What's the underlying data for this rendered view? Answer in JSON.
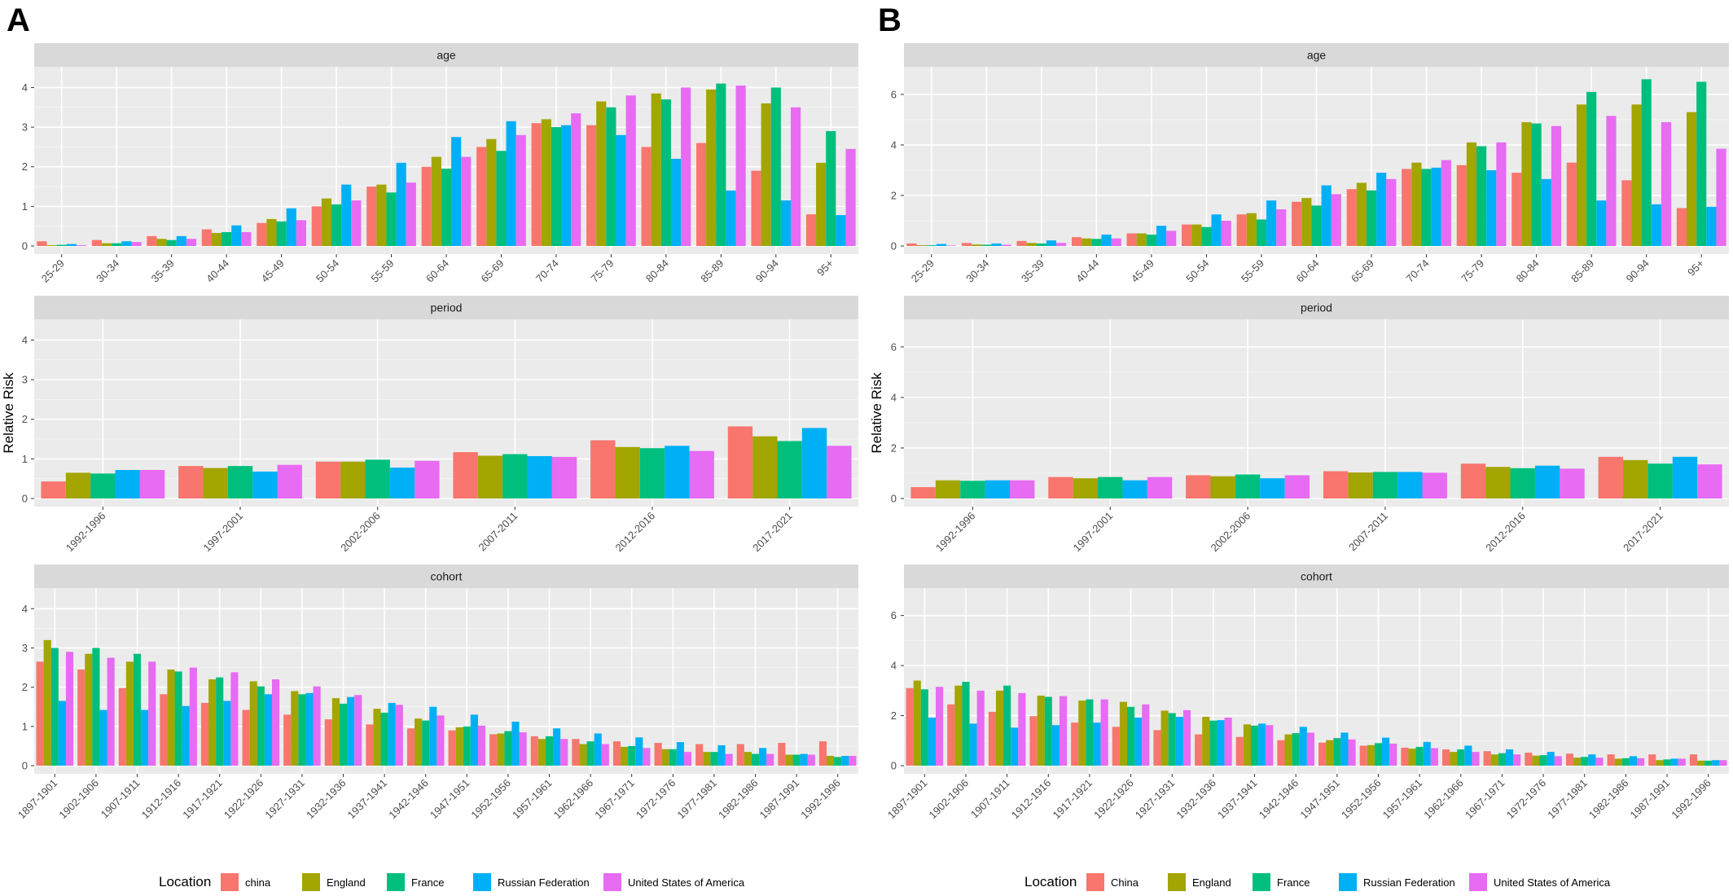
{
  "figure": {
    "colors": {
      "panel_bg": "#ebebeb",
      "strip_bg": "#d9d9d9",
      "grid_major": "#ffffff",
      "series": [
        "#f8766d",
        "#a3a500",
        "#00bf7d",
        "#00b0f6",
        "#e76bf3"
      ]
    },
    "legend_position": "bottom"
  },
  "chart_data": [
    {
      "panel_label": "A",
      "type": "bar",
      "ylabel": "Relative Risk",
      "legend": {
        "title": "Location",
        "entries": [
          "china",
          "England",
          "France",
          "Russian Federation",
          "United States of America"
        ]
      },
      "facets": [
        {
          "title": "age",
          "ylim": [
            0,
            4.4
          ],
          "yticks": [
            0,
            1,
            2,
            3,
            4
          ],
          "categories": [
            "25-29",
            "30-34",
            "35-39",
            "40-44",
            "45-49",
            "50-54",
            "55-59",
            "60-64",
            "65-69",
            "70-74",
            "75-79",
            "80-84",
            "85-89",
            "90-94",
            "95+"
          ],
          "series": [
            {
              "name": "china",
              "values": [
                0.12,
                0.15,
                0.25,
                0.42,
                0.58,
                1.0,
                1.5,
                2.0,
                2.5,
                3.1,
                3.05,
                2.5,
                2.6,
                1.9,
                0.8
              ]
            },
            {
              "name": "England",
              "values": [
                0.02,
                0.07,
                0.18,
                0.33,
                0.68,
                1.2,
                1.55,
                2.25,
                2.7,
                3.2,
                3.65,
                3.85,
                3.95,
                3.6,
                2.1
              ]
            },
            {
              "name": "France",
              "values": [
                0.03,
                0.07,
                0.15,
                0.35,
                0.62,
                1.05,
                1.35,
                1.95,
                2.4,
                3.0,
                3.5,
                3.7,
                4.1,
                4.0,
                2.9
              ]
            },
            {
              "name": "Russian Federation",
              "values": [
                0.05,
                0.12,
                0.25,
                0.52,
                0.95,
                1.55,
                2.1,
                2.75,
                3.15,
                3.05,
                2.8,
                2.2,
                1.4,
                1.15,
                0.78
              ]
            },
            {
              "name": "United States of America",
              "values": [
                0.02,
                0.1,
                0.18,
                0.35,
                0.65,
                1.15,
                1.6,
                2.25,
                2.8,
                3.35,
                3.8,
                4.0,
                4.05,
                3.5,
                2.45
              ]
            }
          ]
        },
        {
          "title": "period",
          "ylim": [
            0,
            4.4
          ],
          "yticks": [
            0,
            1,
            2,
            3,
            4
          ],
          "categories": [
            "1992-1996",
            "1997-2001",
            "2002-2006",
            "2007-2011",
            "2012-2016",
            "2017-2021"
          ],
          "series": [
            {
              "name": "china",
              "values": [
                0.43,
                0.82,
                0.93,
                1.17,
                1.47,
                1.82
              ]
            },
            {
              "name": "England",
              "values": [
                0.65,
                0.77,
                0.93,
                1.08,
                1.3,
                1.57
              ]
            },
            {
              "name": "France",
              "values": [
                0.63,
                0.82,
                0.98,
                1.12,
                1.27,
                1.45
              ]
            },
            {
              "name": "Russian Federation",
              "values": [
                0.72,
                0.68,
                0.78,
                1.07,
                1.33,
                1.78
              ]
            },
            {
              "name": "United States of America",
              "values": [
                0.72,
                0.85,
                0.95,
                1.05,
                1.2,
                1.33
              ]
            }
          ]
        },
        {
          "title": "cohort",
          "ylim": [
            0,
            4.4
          ],
          "yticks": [
            0,
            1,
            2,
            3,
            4
          ],
          "categories": [
            "1897-1901",
            "1902-1906",
            "1907-1911",
            "1912-1916",
            "1917-1921",
            "1922-1926",
            "1927-1931",
            "1932-1936",
            "1937-1941",
            "1942-1946",
            "1947-1951",
            "1952-1956",
            "1957-1961",
            "1962-1966",
            "1967-1971",
            "1972-1976",
            "1977-1981",
            "1982-1986",
            "1987-1991",
            "1992-1996"
          ],
          "series": [
            {
              "name": "china",
              "values": [
                2.65,
                2.45,
                1.98,
                1.82,
                1.6,
                1.42,
                1.3,
                1.18,
                1.05,
                0.95,
                0.9,
                0.8,
                0.75,
                0.68,
                0.62,
                0.58,
                0.55,
                0.55,
                0.58,
                0.62
              ]
            },
            {
              "name": "England",
              "values": [
                3.2,
                2.85,
                2.65,
                2.45,
                2.2,
                2.15,
                1.9,
                1.72,
                1.45,
                1.2,
                0.98,
                0.82,
                0.68,
                0.55,
                0.48,
                0.42,
                0.35,
                0.35,
                0.28,
                0.25
              ]
            },
            {
              "name": "France",
              "values": [
                3.0,
                3.0,
                2.85,
                2.4,
                2.25,
                2.02,
                1.82,
                1.58,
                1.35,
                1.15,
                1.0,
                0.88,
                0.75,
                0.62,
                0.5,
                0.42,
                0.35,
                0.3,
                0.28,
                0.22
              ]
            },
            {
              "name": "Russian Federation",
              "values": [
                1.65,
                1.42,
                1.42,
                1.52,
                1.65,
                1.82,
                1.85,
                1.75,
                1.6,
                1.5,
                1.3,
                1.12,
                0.95,
                0.82,
                0.72,
                0.6,
                0.52,
                0.45,
                0.3,
                0.25
              ]
            },
            {
              "name": "United States of America",
              "values": [
                2.9,
                2.75,
                2.65,
                2.5,
                2.38,
                2.2,
                2.02,
                1.8,
                1.55,
                1.28,
                1.02,
                0.85,
                0.68,
                0.55,
                0.45,
                0.35,
                0.3,
                0.3,
                0.28,
                0.25
              ]
            }
          ]
        }
      ]
    },
    {
      "panel_label": "B",
      "type": "bar",
      "ylabel": "Relative Risk",
      "legend": {
        "title": "Location",
        "entries": [
          "China",
          "England",
          "France",
          "Russian Federation",
          "United States of America"
        ]
      },
      "facets": [
        {
          "title": "age",
          "ylim": [
            0,
            6.9
          ],
          "yticks": [
            0,
            2,
            4,
            6
          ],
          "categories": [
            "25-29",
            "30-34",
            "35-39",
            "40-44",
            "45-49",
            "50-54",
            "55-59",
            "60-64",
            "65-69",
            "70-74",
            "75-79",
            "80-84",
            "85-89",
            "90-94",
            "95+"
          ],
          "series": [
            {
              "name": "China",
              "values": [
                0.1,
                0.12,
                0.2,
                0.35,
                0.5,
                0.85,
                1.25,
                1.75,
                2.25,
                3.05,
                3.2,
                2.9,
                3.3,
                2.6,
                1.5
              ]
            },
            {
              "name": "England",
              "values": [
                0.03,
                0.06,
                0.12,
                0.3,
                0.5,
                0.85,
                1.3,
                1.9,
                2.5,
                3.3,
                4.1,
                4.9,
                5.6,
                5.6,
                5.3
              ]
            },
            {
              "name": "France",
              "values": [
                0.03,
                0.05,
                0.1,
                0.28,
                0.45,
                0.75,
                1.05,
                1.6,
                2.2,
                3.05,
                3.95,
                4.85,
                6.1,
                6.6,
                6.5
              ]
            },
            {
              "name": "Russian Federation",
              "values": [
                0.08,
                0.1,
                0.22,
                0.45,
                0.8,
                1.25,
                1.8,
                2.4,
                2.9,
                3.1,
                3.0,
                2.65,
                1.8,
                1.65,
                1.55
              ]
            },
            {
              "name": "United States of America",
              "values": [
                0.02,
                0.05,
                0.12,
                0.3,
                0.6,
                1.0,
                1.45,
                2.05,
                2.65,
                3.4,
                4.1,
                4.75,
                5.15,
                4.9,
                3.85
              ]
            }
          ]
        },
        {
          "title": "period",
          "ylim": [
            0,
            6.9
          ],
          "yticks": [
            0,
            2,
            4,
            6
          ],
          "categories": [
            "1992-1996",
            "1997-2001",
            "2002-2006",
            "2007-2011",
            "2012-2016",
            "2017-2021"
          ],
          "series": [
            {
              "name": "China",
              "values": [
                0.45,
                0.85,
                0.92,
                1.08,
                1.38,
                1.65
              ]
            },
            {
              "name": "England",
              "values": [
                0.72,
                0.8,
                0.88,
                1.03,
                1.25,
                1.52
              ]
            },
            {
              "name": "France",
              "values": [
                0.7,
                0.85,
                0.95,
                1.05,
                1.2,
                1.38
              ]
            },
            {
              "name": "Russian Federation",
              "values": [
                0.72,
                0.72,
                0.8,
                1.05,
                1.3,
                1.65
              ]
            },
            {
              "name": "United States of America",
              "values": [
                0.72,
                0.85,
                0.92,
                1.02,
                1.18,
                1.35
              ]
            }
          ]
        },
        {
          "title": "cohort",
          "ylim": [
            0,
            6.9
          ],
          "yticks": [
            0,
            2,
            4,
            6
          ],
          "categories": [
            "1897-1901",
            "1902-1906",
            "1907-1911",
            "1912-1916",
            "1917-1921",
            "1922-1926",
            "1927-1931",
            "1932-1936",
            "1937-1941",
            "1942-1946",
            "1947-1951",
            "1952-1956",
            "1957-1961",
            "1962-1966",
            "1967-1971",
            "1972-1976",
            "1977-1981",
            "1982-1986",
            "1987-1991",
            "1992-1996"
          ],
          "series": [
            {
              "name": "China",
              "values": [
                3.1,
                2.45,
                2.15,
                1.98,
                1.72,
                1.55,
                1.42,
                1.25,
                1.15,
                1.02,
                0.92,
                0.8,
                0.72,
                0.65,
                0.58,
                0.52,
                0.48,
                0.45,
                0.45,
                0.45
              ]
            },
            {
              "name": "England",
              "values": [
                3.4,
                3.2,
                3.0,
                2.8,
                2.6,
                2.55,
                2.2,
                1.95,
                1.65,
                1.25,
                1.02,
                0.82,
                0.68,
                0.55,
                0.45,
                0.4,
                0.32,
                0.28,
                0.22,
                0.2
              ]
            },
            {
              "name": "France",
              "values": [
                3.05,
                3.35,
                3.2,
                2.75,
                2.65,
                2.35,
                2.1,
                1.8,
                1.6,
                1.3,
                1.1,
                0.9,
                0.75,
                0.65,
                0.5,
                0.42,
                0.35,
                0.3,
                0.25,
                0.2
              ]
            },
            {
              "name": "Russian Federation",
              "values": [
                1.92,
                1.68,
                1.52,
                1.62,
                1.72,
                1.92,
                1.95,
                1.82,
                1.68,
                1.55,
                1.32,
                1.12,
                0.95,
                0.8,
                0.65,
                0.55,
                0.45,
                0.38,
                0.28,
                0.22
              ]
            },
            {
              "name": "United States of America",
              "values": [
                3.15,
                3.0,
                2.9,
                2.78,
                2.65,
                2.45,
                2.22,
                1.92,
                1.62,
                1.32,
                1.05,
                0.88,
                0.7,
                0.55,
                0.45,
                0.38,
                0.32,
                0.3,
                0.28,
                0.22
              ]
            }
          ]
        }
      ]
    }
  ]
}
